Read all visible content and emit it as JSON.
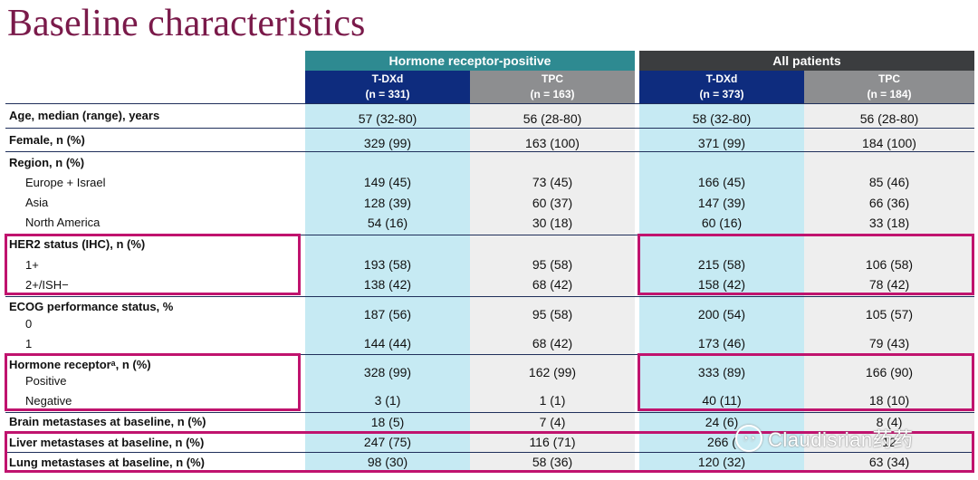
{
  "title": "Baseline characteristics",
  "groups": [
    "Hormone receptor-positive",
    "All patients"
  ],
  "arms": [
    {
      "name": "T-DXd",
      "n": "(n = 331)"
    },
    {
      "name": "TPC",
      "n": "(n = 163)"
    },
    {
      "name": "T-DXd",
      "n": "(n = 373)"
    },
    {
      "name": "TPC",
      "n": "(n = 184)"
    }
  ],
  "rows": [
    {
      "label": "Age, median (range), years",
      "values": [
        "57 (32-80)",
        "56 (28-80)",
        "58 (32-80)",
        "56 (28-80)"
      ]
    },
    {
      "label": "Female, n (%)",
      "values": [
        "329 (99)",
        "163 (100)",
        "371 (99)",
        "184 (100)"
      ]
    },
    {
      "label": "Region, n (%)",
      "values": [
        "",
        "",
        "",
        ""
      ]
    },
    {
      "label": "Europe + Israel",
      "values": [
        "149 (45)",
        "73 (45)",
        "166 (45)",
        "85 (46)"
      ]
    },
    {
      "label": "Asia",
      "values": [
        "128 (39)",
        "60 (37)",
        "147 (39)",
        "66 (36)"
      ]
    },
    {
      "label": "North America",
      "values": [
        "54 (16)",
        "30 (18)",
        "60 (16)",
        "33 (18)"
      ]
    },
    {
      "label": "HER2 status (IHC), n (%)",
      "values": [
        "",
        "",
        "",
        ""
      ]
    },
    {
      "label": "1+",
      "values": [
        "193 (58)",
        "95 (58)",
        "215 (58)",
        "106 (58)"
      ]
    },
    {
      "label": "2+/ISH−",
      "values": [
        "138 (42)",
        "68 (42)",
        "158 (42)",
        "78 (42)"
      ]
    },
    {
      "label": "ECOG performance status, %",
      "values": [
        "187 (56)",
        "95 (58)",
        "200 (54)",
        "105 (57)"
      ]
    },
    {
      "label": "0",
      "values": [
        "",
        "",
        "",
        ""
      ]
    },
    {
      "label": "1",
      "values": [
        "144 (44)",
        "68 (42)",
        "173 (46)",
        "79 (43)"
      ]
    },
    {
      "label": "Hormone receptorᵃ, n (%)",
      "values": [
        "328 (99)",
        "162 (99)",
        "333 (89)",
        "166 (90)"
      ]
    },
    {
      "label": "Positive",
      "values": [
        "",
        "",
        "",
        ""
      ]
    },
    {
      "label": "Negative",
      "values": [
        "3 (1)",
        "1 (1)",
        "40 (11)",
        "18 (10)"
      ]
    },
    {
      "label": "Brain metastases at baseline, n (%)",
      "values": [
        "18 (5)",
        "7 (4)",
        "24 (6)",
        "8 (4)"
      ]
    },
    {
      "label": "Liver metastases at baseline, n (%)",
      "values": [
        "247 (75)",
        "116 (71)",
        "266 (",
        "12"
      ]
    },
    {
      "label": "Lung metastases at baseline, n (%)",
      "values": [
        "98 (30)",
        "58 (36)",
        "120 (32)",
        "63 (34)"
      ]
    }
  ],
  "watermark": "Claudisrian药药",
  "colors": {
    "title": "#7a1a4a",
    "teal": "#2e8a91",
    "dark": "#3b3d3f",
    "navy": "#0e2c7e",
    "gray": "#8d8e90",
    "cyan_col": "#c6eaf3",
    "gray_col": "#eeeeee",
    "highlight": "#c0136e"
  }
}
